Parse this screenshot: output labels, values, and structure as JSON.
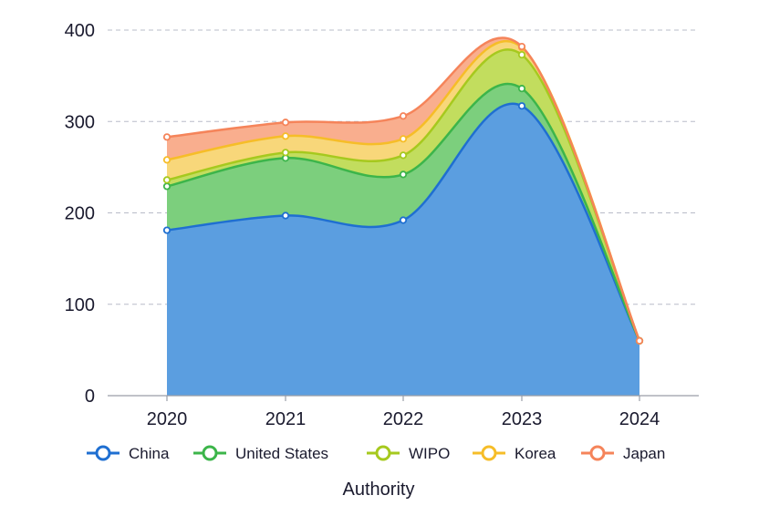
{
  "chart_data": {
    "type": "area",
    "stacked": true,
    "x": [
      "2020",
      "2021",
      "2022",
      "2023",
      "2024"
    ],
    "xlabel": "Authority",
    "ylabel": "",
    "ylim": [
      0,
      400
    ],
    "yticks": [
      0,
      100,
      200,
      300,
      400
    ],
    "grid": true,
    "legend_position": "bottom",
    "series": [
      {
        "name": "China",
        "color": "#1f6fd1",
        "fill": "#5b9ee0",
        "values": [
          181,
          197,
          192,
          317,
          60
        ]
      },
      {
        "name": "United States",
        "color": "#3cb54a",
        "fill": "#7ccf7d",
        "values": [
          48,
          63,
          50,
          19,
          0
        ]
      },
      {
        "name": "WIPO",
        "color": "#a6c91e",
        "fill": "#c2dd5e",
        "values": [
          7,
          6,
          21,
          37,
          0
        ]
      },
      {
        "name": "Korea",
        "color": "#f6bd28",
        "fill": "#f8d77a",
        "values": [
          22,
          18,
          18,
          8,
          0
        ]
      },
      {
        "name": "Japan",
        "color": "#f5845a",
        "fill": "#f9ae8e",
        "values": [
          25,
          15,
          25,
          1,
          0
        ]
      }
    ]
  }
}
